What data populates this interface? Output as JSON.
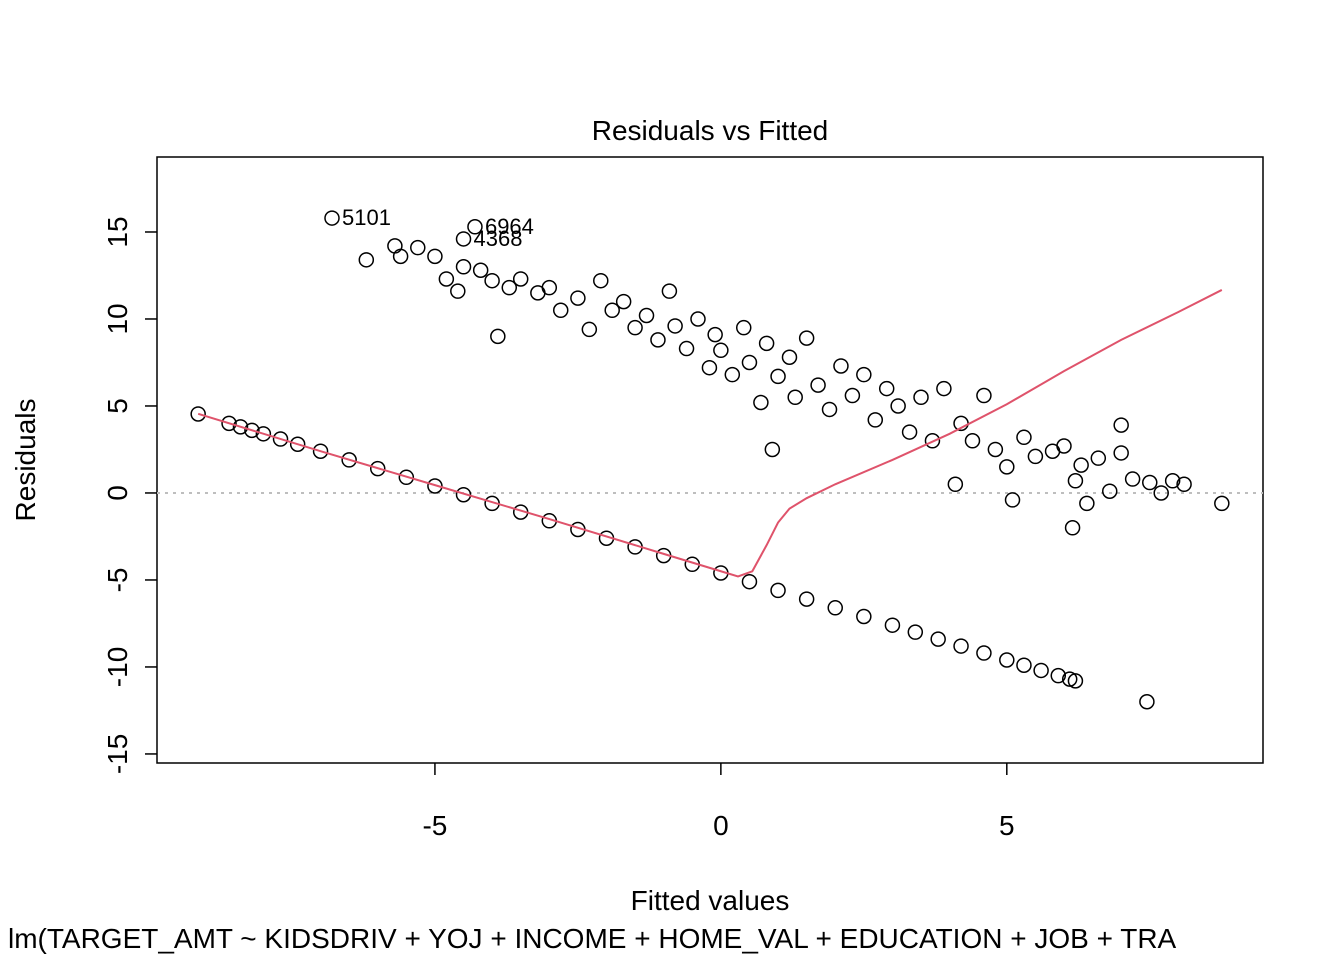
{
  "chart_data": {
    "type": "scatter",
    "title": "Residuals vs Fitted",
    "x_label": "Fitted values",
    "y_label": "Residuals",
    "subtitle": "lm(TARGET_AMT ~ KIDSDRIV + YOJ + INCOME + HOME_VAL + EDUCATION + JOB + TRA",
    "xlim": [
      -9.86,
      9.48
    ],
    "ylim": [
      -15.52,
      19.31
    ],
    "xticks": [
      -5,
      0,
      5
    ],
    "yticks": [
      -15,
      -10,
      -5,
      0,
      5,
      10,
      15
    ],
    "color": "#000000",
    "reference_line": 0,
    "reference_color": "#bebebe",
    "x": [
      -9.14,
      -8.6,
      -8.4,
      -8.2,
      -8.0,
      -7.7,
      -7.4,
      -7.0,
      -6.5,
      -6.0,
      -5.5,
      -5.0,
      -4.5,
      -4.0,
      -3.5,
      -3.0,
      -2.5,
      -2.0,
      -1.5,
      -1.0,
      -0.5,
      0,
      0.5,
      1.0,
      1.5,
      2.0,
      2.5,
      3.0,
      3.4,
      3.8,
      4.2,
      4.6,
      5.0,
      5.3,
      5.6,
      5.9,
      6.1,
      6.2,
      7.45,
      -6.2,
      -5.7,
      -5.6,
      -5.3,
      -5.0,
      -4.8,
      -4.6,
      -4.5,
      -4.2,
      -4.0,
      -3.9,
      -3.7,
      -3.5,
      -3.2,
      -3.0,
      -2.8,
      -2.5,
      -2.3,
      -2.1,
      -1.9,
      -1.7,
      -1.5,
      -1.3,
      -1.1,
      -0.9,
      -0.8,
      -0.6,
      -0.4,
      -0.2,
      -0.1,
      0.0,
      0.2,
      0.4,
      0.5,
      0.7,
      0.8,
      1.0,
      1.2,
      1.3,
      1.5,
      1.7,
      1.9,
      2.1,
      2.3,
      2.5,
      2.7,
      2.9,
      3.1,
      3.3,
      3.5,
      3.7,
      3.9,
      4.1,
      4.2,
      4.4,
      4.6,
      4.8,
      5.0,
      5.1,
      5.3,
      5.5,
      5.8,
      6.0,
      6.15,
      6.2,
      6.3,
      6.4,
      6.6,
      6.8,
      7.0,
      7.0,
      7.2,
      7.5,
      7.7,
      7.9,
      8.1,
      8.76,
      0.9
    ],
    "values": [
      4.54,
      4.0,
      3.8,
      3.6,
      3.4,
      3.1,
      2.8,
      2.4,
      1.9,
      1.4,
      0.9,
      0.4,
      -0.1,
      -0.6,
      -1.1,
      -1.6,
      -2.1,
      -2.6,
      -3.1,
      -3.6,
      -4.1,
      -4.6,
      -5.1,
      -5.6,
      -6.1,
      -6.6,
      -7.1,
      -7.6,
      -8.0,
      -8.4,
      -8.8,
      -9.2,
      -9.6,
      -9.9,
      -10.2,
      -10.5,
      -10.7,
      -10.8,
      -12.0,
      13.4,
      14.2,
      13.6,
      14.1,
      13.6,
      12.3,
      11.6,
      13.0,
      12.8,
      12.2,
      9.0,
      11.8,
      12.3,
      11.5,
      11.8,
      10.5,
      11.2,
      9.4,
      12.2,
      10.5,
      11.0,
      9.5,
      10.2,
      8.8,
      11.6,
      9.6,
      8.3,
      10.0,
      7.2,
      9.1,
      8.2,
      6.8,
      9.5,
      7.5,
      5.2,
      8.6,
      6.7,
      7.8,
      5.5,
      8.9,
      6.2,
      4.8,
      7.3,
      5.6,
      6.8,
      4.2,
      6.0,
      5.0,
      3.5,
      5.5,
      3.0,
      6.0,
      0.5,
      4.0,
      3.0,
      5.6,
      2.5,
      1.5,
      -0.4,
      3.2,
      2.1,
      2.4,
      2.7,
      -2.0,
      0.7,
      1.6,
      -0.6,
      2.0,
      0.1,
      3.9,
      2.3,
      0.8,
      0.6,
      0.0,
      0.7,
      0.5,
      -0.6,
      2.5
    ],
    "annotations": [
      {
        "text": "5101",
        "x": -6.8,
        "y": 15.8
      },
      {
        "text": "6964",
        "x": -4.3,
        "y": 15.3
      },
      {
        "text": "4368",
        "x": -4.5,
        "y": 14.6
      }
    ],
    "smooth": {
      "color": "#DF536B",
      "x": [
        -9.14,
        -7,
        -5,
        -3,
        -1,
        0,
        0.3,
        0.55,
        0.8,
        1.0,
        1.2,
        1.5,
        2,
        3,
        4,
        5,
        6,
        7,
        8,
        8.76
      ],
      "values": [
        4.55,
        2.4,
        0.45,
        -1.5,
        -3.5,
        -4.5,
        -4.8,
        -4.5,
        -3.0,
        -1.7,
        -0.9,
        -0.3,
        0.5,
        1.9,
        3.4,
        5.1,
        7.0,
        8.8,
        10.4,
        11.67
      ]
    }
  }
}
